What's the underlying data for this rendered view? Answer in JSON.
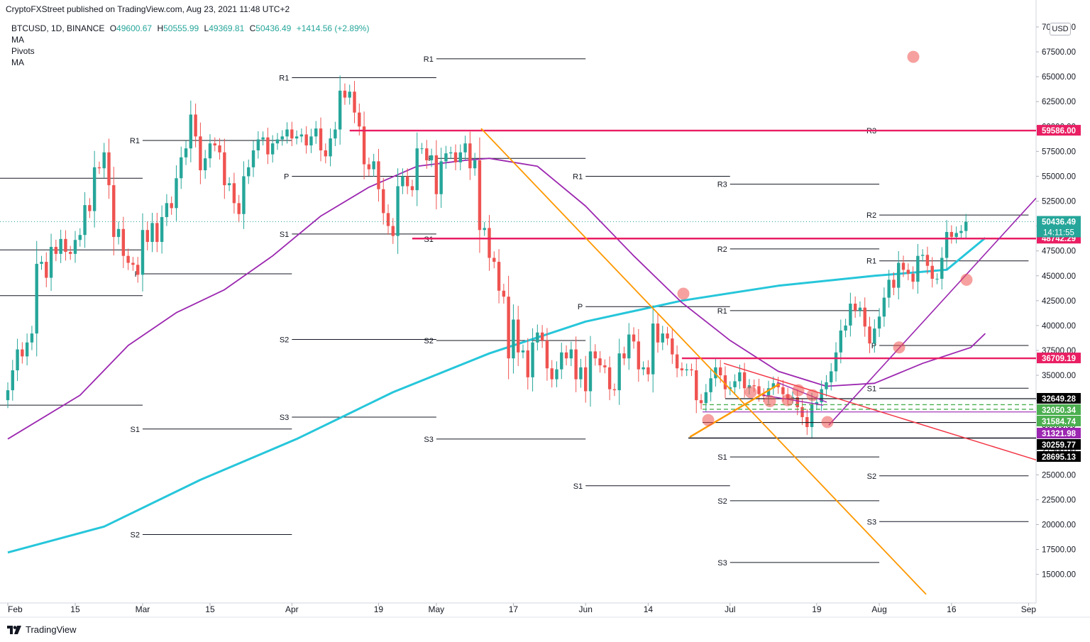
{
  "header": {
    "publisher": "CryptoFXStreet published on TradingView.com, Aug 23, 2021 11:48 UTC+2"
  },
  "legend": {
    "symbol": "BTCUSD, 1D, BINANCE",
    "o_label": "O",
    "o_value": "49600.67",
    "h_label": "H",
    "h_value": "50555.99",
    "l_label": "L",
    "l_value": "49369.81",
    "c_label": "C",
    "c_value": "50436.49",
    "change": "+1414.56 (+2.89%)",
    "indicators": [
      "MA",
      "Pivots",
      "MA"
    ]
  },
  "currency": "USD",
  "footer": {
    "brand": "TradingView"
  },
  "colors": {
    "up": "#26a69a",
    "down": "#ef5350",
    "ma_slow": "#26c6da",
    "ma_fast": "#9c27b0",
    "resistance": "#e91e63",
    "orange": "#ff9800",
    "red_line": "#f23645",
    "dashed_green": "#4caf50"
  },
  "chart_data": {
    "type": "candlestick",
    "y_axis": {
      "ticks": [
        "15000.00",
        "17500.00",
        "20000.00",
        "22500.00",
        "25000.00",
        "27500.00",
        "30000.00",
        "32500.00",
        "35000.00",
        "37500.00",
        "40000.00",
        "42500.00",
        "45000.00",
        "47500.00",
        "50000.00",
        "52500.00",
        "55000.00",
        "57500.00",
        "60000.00",
        "62500.00",
        "65000.00",
        "67500.00",
        "70000.00"
      ],
      "range": [
        11500,
        71500
      ]
    },
    "x_axis": {
      "ticks": [
        "Feb",
        "15",
        "Mar",
        "15",
        "Apr",
        "19",
        "May",
        "17",
        "Jun",
        "14",
        "Jul",
        "19",
        "Aug",
        "16",
        "Sep"
      ],
      "tick_dates": [
        "2021-02-01",
        "2021-02-15",
        "2021-03-01",
        "2021-03-15",
        "2021-04-01",
        "2021-04-19",
        "2021-05-01",
        "2021-05-17",
        "2021-06-01",
        "2021-06-14",
        "2021-07-01",
        "2021-07-19",
        "2021-08-01",
        "2021-08-16",
        "2021-09-01"
      ]
    },
    "first_date": "2021-02-01",
    "candles_close": [
      33500,
      35500,
      37600,
      36900,
      38300,
      39200,
      46200,
      46400,
      44800,
      47900,
      47200,
      48700,
      47400,
      47200,
      48600,
      49100,
      52100,
      51500,
      55900,
      55800,
      57400,
      54100,
      48900,
      49700,
      47000,
      46300,
      46100,
      45100,
      49600,
      48400,
      50300,
      48400,
      50900,
      52300,
      51800,
      54800,
      56900,
      57800,
      61200,
      59000,
      55600,
      56800,
      58300,
      58100,
      57400,
      54100,
      54300,
      52300,
      51200,
      55000,
      55900,
      57600,
      58700,
      58900,
      57200,
      58300,
      58700,
      59000,
      59700,
      58800,
      59000,
      59200,
      58100,
      59000,
      59800,
      57600,
      57000,
      58800,
      59700,
      63600,
      62900,
      63500,
      61400,
      60000,
      56200,
      55700,
      56500,
      53700,
      51300,
      50000,
      49000,
      54000,
      55000,
      54000,
      53600,
      57800,
      57800,
      56600,
      57100,
      53200,
      56500,
      57300,
      57400,
      56400,
      57400,
      58300,
      55800,
      56600,
      49600,
      49800,
      46800,
      46400,
      43500,
      42900,
      36700,
      40600,
      37300,
      37500,
      34800,
      38300,
      39300,
      38500,
      35700,
      34600,
      35600,
      37300,
      36700,
      37600,
      34600,
      35800,
      33400,
      37400,
      36700,
      36000,
      35800,
      33600,
      33500,
      37200,
      36700,
      39100,
      38400,
      35600,
      35800,
      35100,
      40200,
      38300,
      39200,
      38700,
      37100,
      35700,
      35500,
      35600,
      35500,
      32500,
      32200,
      33300,
      34700,
      35800,
      35000,
      33600,
      33800,
      34400,
      35300,
      33700,
      34000,
      33900,
      33100,
      32900,
      33700,
      34200,
      33800,
      33100,
      32700,
      32800,
      31800,
      30800,
      29800,
      32100,
      32300,
      33600,
      34300,
      35400,
      37300,
      39500,
      40000,
      42200,
      41500,
      41800,
      39900,
      38200,
      39700,
      40900,
      42800,
      44600,
      43800,
      46300,
      45600,
      45200,
      44400,
      47000,
      47100,
      46000,
      44700,
      44700,
      46800,
      49400,
      48900,
      49300,
      49500,
      50436
    ],
    "ma_slow_values": [
      17200,
      33300,
      46100,
      48800
    ],
    "ma_fast_values": [
      28600,
      46400,
      56500,
      42300,
      33700,
      46200,
      39200
    ],
    "resistance_levels": [
      {
        "value": "59586.00",
        "price": 59586
      },
      {
        "value": "48742.29",
        "price": 48742
      },
      {
        "value": "36709.19",
        "price": 36709
      }
    ],
    "support_levels": [
      {
        "value": "32649.28",
        "price": 32649
      },
      {
        "value": "32050.34",
        "price": 32050
      },
      {
        "value": "31584.74",
        "price": 31584
      },
      {
        "value": "31321.98",
        "price": 31321
      },
      {
        "value": "30259.77",
        "price": 30259
      },
      {
        "value": "28695.13",
        "price": 28695
      }
    ],
    "last_price": {
      "value": "50436.49",
      "countdown": "14:11:55",
      "price": 50436
    },
    "pivot_periods": [
      {
        "start": "2021-02-01",
        "end": "2021-03-01",
        "levels": [
          {
            "label": "",
            "price": 32000
          },
          {
            "label": "",
            "price": 43000
          },
          {
            "label": "",
            "price": 47600
          },
          {
            "label": "",
            "price": 54800
          }
        ],
        "truncated": true
      },
      {
        "start": "2021-03-01",
        "end": "2021-04-01",
        "levels": [
          {
            "label": "R1",
            "price": 58600
          },
          {
            "label": "P",
            "price": 45200
          },
          {
            "label": "S1",
            "price": 29600
          },
          {
            "label": "S2",
            "price": 19000
          }
        ]
      },
      {
        "start": "2021-04-01",
        "end": "2021-05-01",
        "levels": [
          {
            "label": "R1",
            "price": 64900
          },
          {
            "label": "P",
            "price": 55000
          },
          {
            "label": "S1",
            "price": 49200
          },
          {
            "label": "S2",
            "price": 38600
          },
          {
            "label": "S3",
            "price": 30800
          }
        ]
      },
      {
        "start": "2021-05-01",
        "end": "2021-06-01",
        "levels": [
          {
            "label": "R1",
            "price": 66800
          },
          {
            "label": "P",
            "price": 56800
          },
          {
            "label": "S1",
            "price": 48700
          },
          {
            "label": "S2",
            "price": 38500
          },
          {
            "label": "S3",
            "price": 28600
          }
        ]
      },
      {
        "start": "2021-06-01",
        "end": "2021-07-01",
        "levels": [
          {
            "label": "R1",
            "price": 55000
          },
          {
            "label": "P",
            "price": 41900
          },
          {
            "label": "S1",
            "price": 23900
          }
        ]
      },
      {
        "start": "2021-07-01",
        "end": "2021-08-01",
        "levels": [
          {
            "label": "R3",
            "price": 54200
          },
          {
            "label": "R2",
            "price": 47700
          },
          {
            "label": "R1",
            "price": 41500
          },
          {
            "label": "S1",
            "price": 26800
          },
          {
            "label": "S2",
            "price": 22400
          },
          {
            "label": "S3",
            "price": 16200
          }
        ]
      },
      {
        "start": "2021-08-01",
        "end": "2021-09-01",
        "levels": [
          {
            "label": "R3",
            "price": 59600
          },
          {
            "label": "R2",
            "price": 51100
          },
          {
            "label": "R1",
            "price": 46500
          },
          {
            "label": "P",
            "price": 38000
          },
          {
            "label": "S1",
            "price": 33700
          },
          {
            "label": "S2",
            "price": 24900
          },
          {
            "label": "S3",
            "price": 20300
          }
        ]
      }
    ],
    "annotations": [
      "support-circles",
      "orange-trendlines",
      "purple-trend-channel",
      "red-descending-line"
    ]
  }
}
